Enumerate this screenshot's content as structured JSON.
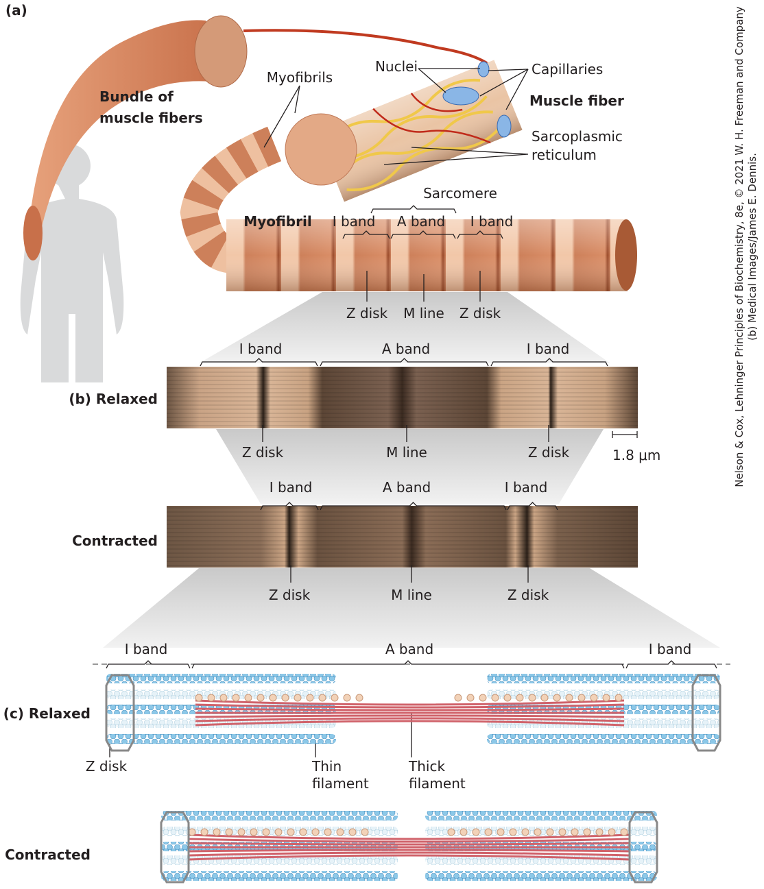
{
  "panel_a": {
    "label": "(a)",
    "bundle": [
      "Bundle of",
      "muscle fibers"
    ],
    "myofibrils": "Myofibrils",
    "nuclei": "Nuclei",
    "capillaries": "Capillaries",
    "muscle_fiber": "Muscle fiber",
    "sarcoplasmic_reticulum": [
      "Sarcoplasmic",
      "reticulum"
    ],
    "sarcomere": "Sarcomere",
    "myofibril": "Myofibril",
    "bands": [
      "I band",
      "A band",
      "I band"
    ],
    "lines": [
      "Z disk",
      "M line",
      "Z disk"
    ]
  },
  "panel_b": {
    "relaxed": {
      "label": "(b) Relaxed",
      "bands": [
        "I band",
        "A band",
        "I band"
      ],
      "lines": [
        "Z disk",
        "M line",
        "Z disk"
      ]
    },
    "scale_bar": "1.8 μm",
    "contracted": {
      "label": "Contracted",
      "bands": [
        "I band",
        "A band",
        "I band"
      ],
      "lines": [
        "Z disk",
        "M line",
        "Z disk"
      ]
    }
  },
  "panel_c": {
    "relaxed": {
      "label": "(c) Relaxed",
      "bands": [
        "I band",
        "A band",
        "I band"
      ]
    },
    "z_disk": "Z disk",
    "thin_filament": [
      "Thin",
      "filament"
    ],
    "thick_filament": [
      "Thick",
      "filament"
    ],
    "contracted": {
      "label": "Contracted"
    }
  },
  "credit": {
    "line1": "Nelson & Cox, Lehninger Principles of Biochemistry, 8e, © 2021 W. H. Freeman and Company",
    "line2": "(b) Medical Images/James E. Dennis."
  }
}
